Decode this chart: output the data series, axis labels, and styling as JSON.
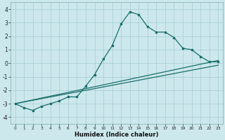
{
  "bg_color": "#cce8ec",
  "grid_color": "#aad0d6",
  "line_color": "#1a6e6a",
  "xlabel": "Humidex (Indice chaleur)",
  "xlim": [
    -0.5,
    23.5
  ],
  "ylim": [
    -4.5,
    4.5
  ],
  "yticks": [
    -4,
    -3,
    -2,
    -1,
    0,
    1,
    2,
    3,
    4
  ],
  "xticks": [
    0,
    1,
    2,
    3,
    4,
    5,
    6,
    7,
    8,
    9,
    10,
    11,
    12,
    13,
    14,
    15,
    16,
    17,
    18,
    19,
    20,
    21,
    22,
    23
  ],
  "curve_x": [
    0,
    1,
    2,
    3,
    4,
    5,
    6,
    7,
    8,
    9,
    10,
    11,
    12,
    13,
    14,
    15,
    16,
    17,
    18,
    19,
    20,
    21,
    22,
    23
  ],
  "curve_y": [
    -3.0,
    -3.3,
    -3.5,
    -3.2,
    -3.0,
    -2.8,
    -2.5,
    -2.5,
    -1.7,
    -0.85,
    0.3,
    1.3,
    2.9,
    3.8,
    3.6,
    2.7,
    2.3,
    2.3,
    1.9,
    1.1,
    1.0,
    0.5,
    0.1,
    0.1
  ],
  "line1_x": [
    0,
    23
  ],
  "line1_y": [
    -3.0,
    -0.15
  ],
  "line2_x": [
    0,
    23
  ],
  "line2_y": [
    -3.0,
    0.2
  ],
  "marker_x": [
    0,
    1,
    2,
    3,
    4,
    5,
    6,
    7,
    8,
    9,
    10,
    11,
    12,
    13,
    14,
    15,
    16,
    17,
    18,
    19,
    20,
    21,
    22,
    23
  ],
  "marker_y": [
    -3.0,
    -3.3,
    -3.5,
    -3.2,
    -3.0,
    -2.8,
    -2.5,
    -2.5,
    -1.7,
    -0.85,
    0.3,
    1.3,
    2.9,
    3.8,
    3.6,
    2.7,
    2.3,
    2.3,
    1.9,
    1.1,
    1.0,
    0.5,
    0.1,
    0.1
  ]
}
